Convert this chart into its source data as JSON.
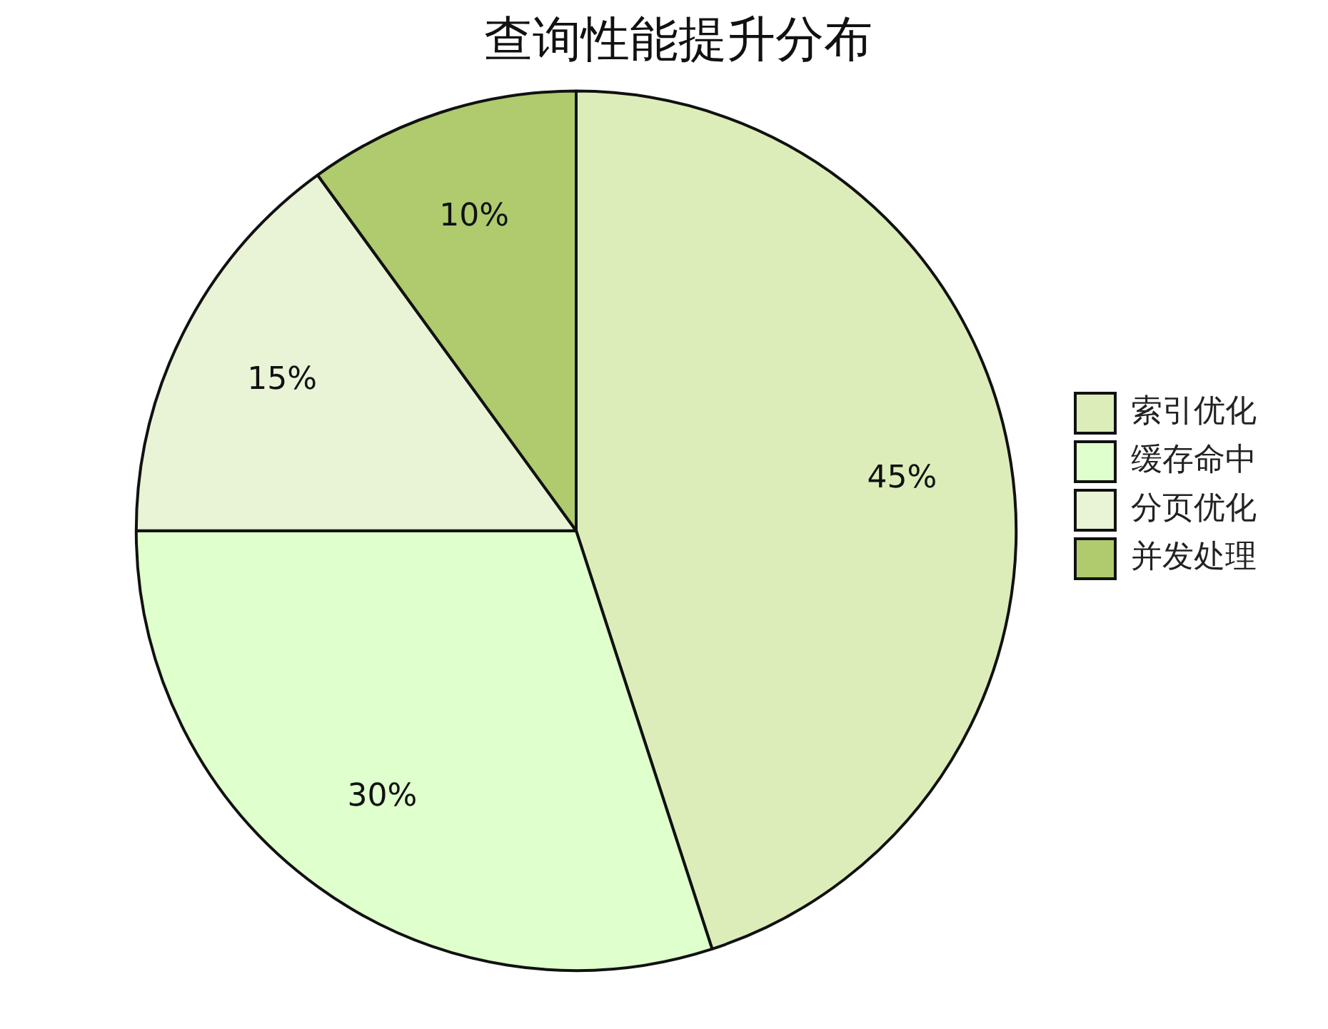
{
  "chart_data": {
    "type": "pie",
    "title": "查询性能提升分布",
    "categories": [
      "索引优化",
      "缓存命中",
      "分页优化",
      "并发处理"
    ],
    "values": [
      45,
      30,
      15,
      10
    ],
    "colors": [
      "#dcedb9",
      "#dfffcc",
      "#e9f3d5",
      "#afcb6e"
    ],
    "value_labels": [
      "45%",
      "30%",
      "15%",
      "10%"
    ],
    "legend": "right"
  }
}
